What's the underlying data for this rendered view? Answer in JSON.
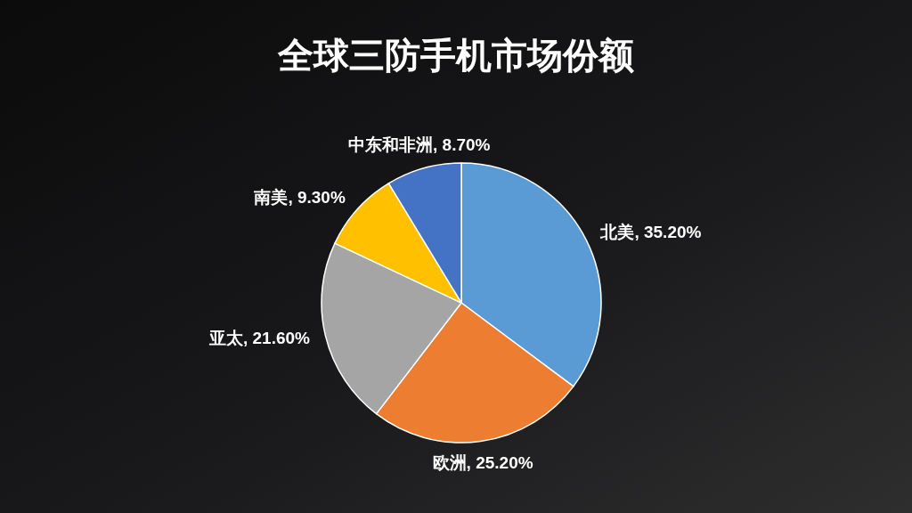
{
  "chart_data": {
    "type": "pie",
    "title": "全球三防手机市场份额",
    "categories": [
      "北美",
      "欧洲",
      "亚太",
      "南美",
      "中东和非洲"
    ],
    "values": [
      35.2,
      25.2,
      21.6,
      9.3,
      8.7
    ],
    "colors": [
      "#5b9bd5",
      "#ed7d31",
      "#a5a5a5",
      "#ffc000",
      "#4472c4"
    ],
    "value_labels": [
      "35.20%",
      "25.20%",
      "21.60%",
      "9.30%",
      "8.70%"
    ]
  }
}
